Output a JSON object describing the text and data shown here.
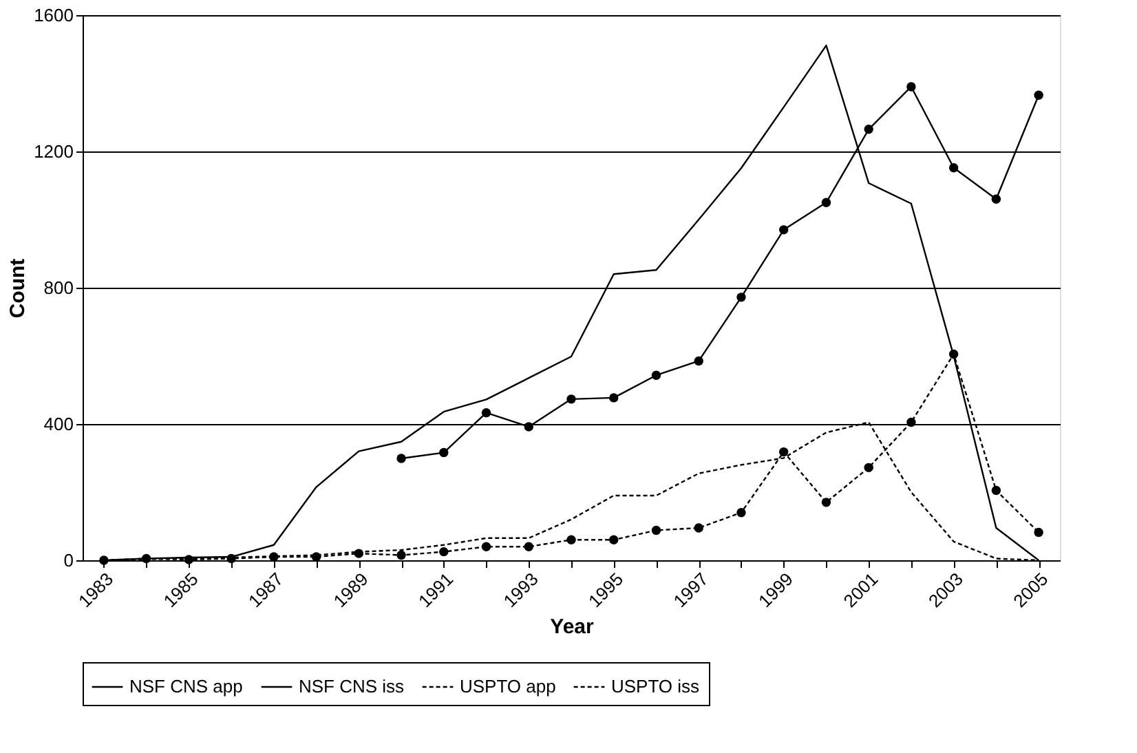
{
  "chart_data": {
    "type": "line",
    "xlabel": "Year",
    "ylabel": "Count",
    "categories": [
      "1983",
      null,
      "1985",
      null,
      "1987",
      null,
      "1989",
      null,
      "1991",
      null,
      "1993",
      null,
      "1995",
      null,
      "1997",
      null,
      "1999",
      null,
      "2001",
      null,
      "2003",
      null,
      "2005"
    ],
    "series": [
      {
        "name": "NSF CNS app",
        "color": "#000000",
        "marker": "none",
        "line_style": "solid",
        "values": [
          0,
          5,
          8,
          10,
          45,
          215,
          320,
          348,
          436,
          472,
          535,
          598,
          840,
          852,
          1000,
          1151,
          1330,
          1511,
          1107,
          1047,
          600,
          95,
          0
        ]
      },
      {
        "name": "NSF CNS iss",
        "color": "#000000",
        "marker": "circle",
        "line_style": "solid",
        "values": [
          null,
          null,
          null,
          null,
          null,
          null,
          null,
          299,
          316,
          433,
          392,
          473,
          477,
          543,
          585,
          772,
          970,
          1050,
          1265,
          1390,
          1152,
          1060,
          1365
        ]
      },
      {
        "name": "USPTO app",
        "color": "#000000",
        "marker": "none",
        "line_style": "dotted",
        "values": [
          0,
          3,
          5,
          8,
          12,
          15,
          25,
          30,
          45,
          65,
          65,
          120,
          190,
          190,
          255,
          280,
          300,
          375,
          405,
          200,
          55,
          5,
          0
        ]
      },
      {
        "name": "USPTO iss",
        "color": "#000000",
        "marker": "circle",
        "line_style": "dotted",
        "values": [
          0,
          5,
          2,
          5,
          10,
          10,
          20,
          15,
          25,
          40,
          40,
          60,
          60,
          88,
          95,
          140,
          318,
          170,
          272,
          405,
          605,
          205,
          82
        ]
      }
    ],
    "ylim": [
      0,
      1600
    ],
    "yticks": [
      0,
      400,
      800,
      1200,
      1600
    ],
    "grid": "y",
    "legend": "bottom"
  }
}
